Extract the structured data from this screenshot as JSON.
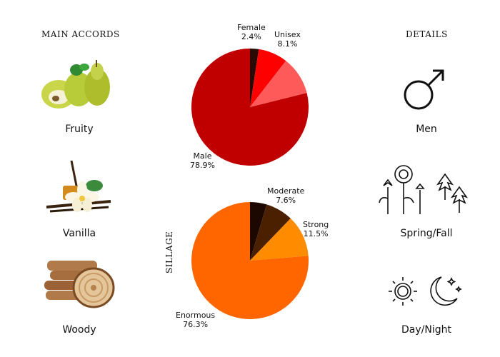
{
  "headings": {
    "main_accords": "MAIN ACCORDS",
    "details": "DETAILS"
  },
  "accords": [
    {
      "label": "Fruity",
      "icon": "pear-icon"
    },
    {
      "label": "Vanilla",
      "icon": "vanilla-flower-icon"
    },
    {
      "label": "Woody",
      "icon": "wood-logs-icon"
    }
  ],
  "details": [
    {
      "label": "Men",
      "icon": "male-symbol-icon"
    },
    {
      "label": "Spring/Fall",
      "icon": "flowers-leaves-icon"
    },
    {
      "label": "Day/Night",
      "icon": "sun-moon-icon"
    }
  ],
  "chart_data": [
    {
      "type": "pie",
      "title": "",
      "slices": [
        {
          "label": "Female",
          "value": 2.4,
          "percent_text": "2.4%",
          "color": "#2a0a05"
        },
        {
          "label": "Unisex",
          "value": 8.1,
          "percent_text": "8.1%",
          "color": "#ff0000"
        },
        {
          "label": "",
          "value": 10.6,
          "percent_text": "",
          "color": "#ff5a5a"
        },
        {
          "label": "Male",
          "value": 78.9,
          "percent_text": "78.9%",
          "color": "#c00000"
        }
      ]
    },
    {
      "type": "pie",
      "title": "SILLAGE",
      "slices": [
        {
          "label": "",
          "value": 4.6,
          "percent_text": "",
          "color": "#1c0800"
        },
        {
          "label": "Moderate",
          "value": 7.6,
          "percent_text": "7.6%",
          "color": "#4a2000"
        },
        {
          "label": "Strong",
          "value": 11.5,
          "percent_text": "11.5%",
          "color": "#ff8c00"
        },
        {
          "label": "Enormous",
          "value": 76.3,
          "percent_text": "76.3%",
          "color": "#ff6600"
        }
      ]
    }
  ]
}
